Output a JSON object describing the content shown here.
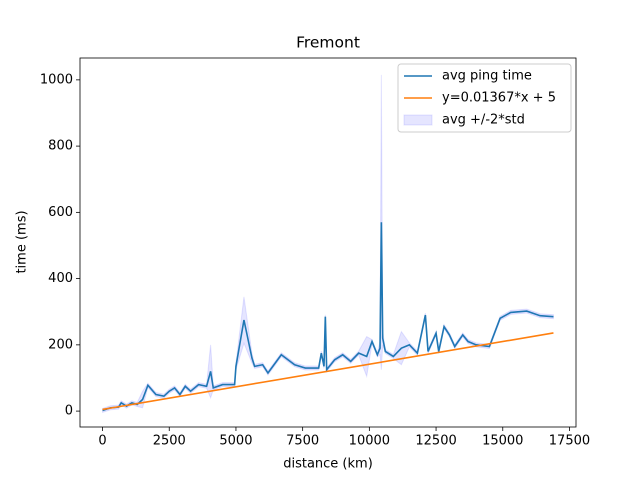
{
  "chart_data": {
    "type": "line",
    "title": "Fremont",
    "xlabel": "distance (km)",
    "ylabel": "time (ms)",
    "x": [
      0,
      300,
      600,
      700,
      900,
      1100,
      1300,
      1500,
      1700,
      2000,
      2300,
      2500,
      2700,
      2900,
      3100,
      3300,
      3600,
      3900,
      4050,
      4150,
      4500,
      4950,
      5000,
      5300,
      5600,
      5700,
      6000,
      6200,
      6700,
      7200,
      7600,
      8100,
      8200,
      8300,
      8350,
      8400,
      8700,
      9000,
      9300,
      9600,
      9900,
      10100,
      10300,
      10400,
      10450,
      10500,
      10600,
      10900,
      11200,
      11500,
      11800,
      12100,
      12200,
      12500,
      12600,
      12800,
      13000,
      13200,
      13500,
      13700,
      14000,
      14500,
      14900,
      15300,
      15900,
      16400,
      16900
    ],
    "series": [
      {
        "name": "avg ping time",
        "color": "#1f77b4",
        "values": [
          2,
          10,
          12,
          25,
          15,
          25,
          20,
          35,
          78,
          50,
          45,
          60,
          70,
          50,
          75,
          60,
          80,
          75,
          120,
          70,
          80,
          80,
          135,
          275,
          160,
          135,
          140,
          115,
          170,
          140,
          130,
          130,
          175,
          135,
          285,
          125,
          155,
          170,
          150,
          175,
          165,
          210,
          170,
          190,
          570,
          220,
          180,
          165,
          190,
          200,
          175,
          290,
          180,
          235,
          180,
          255,
          230,
          195,
          230,
          210,
          200,
          195,
          280,
          298,
          302,
          288,
          285
        ]
      },
      {
        "name": "y=0.01367*x + 5",
        "color": "#ff7f0e",
        "x": [
          0,
          16900
        ],
        "values": [
          5,
          236.02
        ]
      }
    ],
    "band": {
      "name": "avg +/-2*std",
      "color": "#0000ff",
      "lower": [
        -4,
        4,
        6,
        19,
        9,
        19,
        14,
        10,
        72,
        44,
        39,
        54,
        64,
        44,
        69,
        54,
        74,
        69,
        40,
        64,
        74,
        74,
        125,
        205,
        145,
        129,
        134,
        109,
        164,
        134,
        124,
        124,
        169,
        129,
        279,
        119,
        149,
        164,
        144,
        169,
        105,
        204,
        164,
        170,
        125,
        200,
        174,
        159,
        140,
        194,
        169,
        284,
        174,
        229,
        174,
        249,
        224,
        189,
        224,
        204,
        194,
        189,
        274,
        292,
        296,
        282,
        279
      ],
      "upper": [
        8,
        16,
        18,
        31,
        21,
        31,
        26,
        60,
        84,
        56,
        51,
        66,
        76,
        56,
        81,
        66,
        86,
        81,
        200,
        76,
        86,
        86,
        145,
        345,
        175,
        141,
        146,
        121,
        176,
        146,
        136,
        136,
        181,
        141,
        291,
        131,
        161,
        176,
        156,
        181,
        225,
        216,
        176,
        210,
        1015,
        240,
        186,
        171,
        240,
        206,
        181,
        296,
        186,
        241,
        186,
        261,
        236,
        201,
        236,
        216,
        206,
        201,
        286,
        304,
        308,
        294,
        291
      ]
    },
    "xlim": [
      -845,
      17745
    ],
    "ylim": [
      -48,
      1066
    ],
    "xticks": [
      0,
      2500,
      5000,
      7500,
      10000,
      12500,
      15000,
      17500
    ],
    "yticks": [
      0,
      200,
      400,
      600,
      800,
      1000
    ],
    "legend": "upper right"
  }
}
